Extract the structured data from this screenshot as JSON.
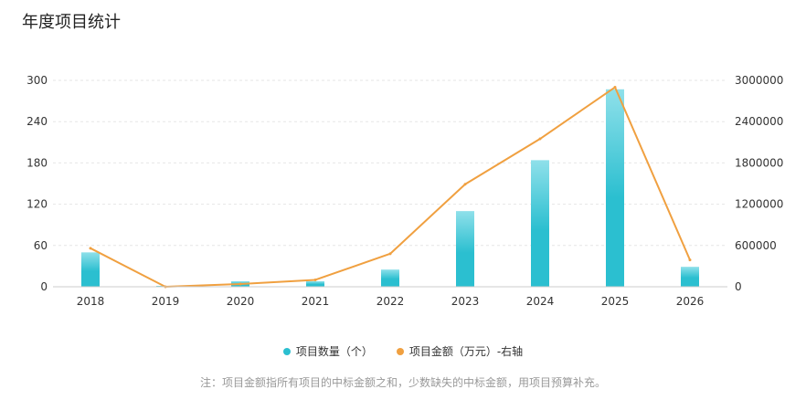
{
  "title": "年度项目统计",
  "colors": {
    "bar": "#2bbfd0",
    "bar_top": "#8fe0ea",
    "line": "#f0a040",
    "grid": "#e6e6e6"
  },
  "legend": {
    "bar_label": "项目数量（个）",
    "line_label": "项目金额（万元）-右轴"
  },
  "note": "注：项目金额指所有项目的中标金额之和，少数缺失的中标金额，用项目预算补充。",
  "chart_data": {
    "type": "bar",
    "title": "年度项目统计",
    "categories": [
      "2018",
      "2019",
      "2020",
      "2021",
      "2022",
      "2023",
      "2024",
      "2025",
      "2026"
    ],
    "series": [
      {
        "name": "项目数量（个）",
        "type": "bar",
        "axis": "left",
        "values": [
          50,
          1,
          8,
          8,
          25,
          110,
          184,
          287,
          29
        ]
      },
      {
        "name": "项目金额（万元）-右轴",
        "type": "line",
        "axis": "right",
        "values": [
          560000,
          0,
          40000,
          100000,
          480000,
          1490000,
          2150000,
          2900000,
          390000
        ]
      }
    ],
    "y_left": {
      "min": 0,
      "max": 300,
      "ticks": [
        0,
        60,
        120,
        180,
        240,
        300
      ]
    },
    "y_right": {
      "min": 0,
      "max": 3000000,
      "ticks": [
        0,
        600000,
        1200000,
        1800000,
        2400000,
        3000000
      ]
    },
    "grid": true
  }
}
